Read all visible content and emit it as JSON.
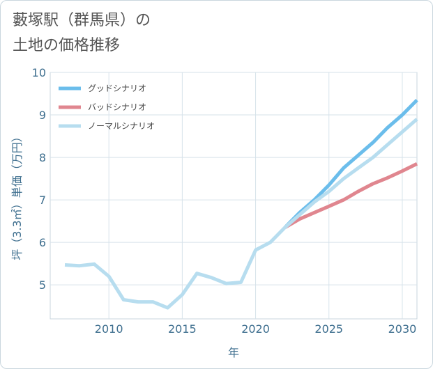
{
  "chart_data": {
    "type": "line",
    "title": "藪塚駅（群馬県）の\n土地の価格推移",
    "xlabel": "年",
    "ylabel": "坪（3.3㎡）単価（万円）",
    "xlim": [
      2006,
      2031
    ],
    "ylim": [
      4.2,
      10
    ],
    "xticks": [
      2010,
      2015,
      2020,
      2025,
      2030
    ],
    "yticks": [
      5,
      6,
      7,
      8,
      9,
      10
    ],
    "grid": true,
    "legend_position": "top-left",
    "series": [
      {
        "name": "グッドシナリオ",
        "color": "#6bbdeb",
        "x": [
          2022,
          2023,
          2024,
          2025,
          2026,
          2027,
          2028,
          2029,
          2030,
          2031
        ],
        "y": [
          6.35,
          6.7,
          7.0,
          7.35,
          7.75,
          8.05,
          8.35,
          8.7,
          9.0,
          9.35
        ]
      },
      {
        "name": "バッドシナリオ",
        "color": "#e0868f",
        "x": [
          2022,
          2023,
          2024,
          2025,
          2026,
          2027,
          2028,
          2029,
          2030,
          2031
        ],
        "y": [
          6.35,
          6.55,
          6.7,
          6.85,
          7.0,
          7.2,
          7.38,
          7.52,
          7.68,
          7.85
        ]
      },
      {
        "name": "ノーマルシナリオ",
        "color": "#b7ddef",
        "x": [
          2007,
          2008,
          2009,
          2010,
          2011,
          2012,
          2013,
          2014,
          2015,
          2016,
          2017,
          2018,
          2019,
          2020,
          2021,
          2022,
          2023,
          2024,
          2025,
          2026,
          2027,
          2028,
          2029,
          2030,
          2031
        ],
        "y": [
          5.47,
          5.45,
          5.49,
          5.2,
          4.65,
          4.6,
          4.6,
          4.46,
          4.77,
          5.27,
          5.17,
          5.03,
          5.06,
          5.82,
          6.0,
          6.35,
          6.65,
          6.95,
          7.2,
          7.5,
          7.75,
          8.0,
          8.3,
          8.6,
          8.9
        ]
      }
    ]
  }
}
